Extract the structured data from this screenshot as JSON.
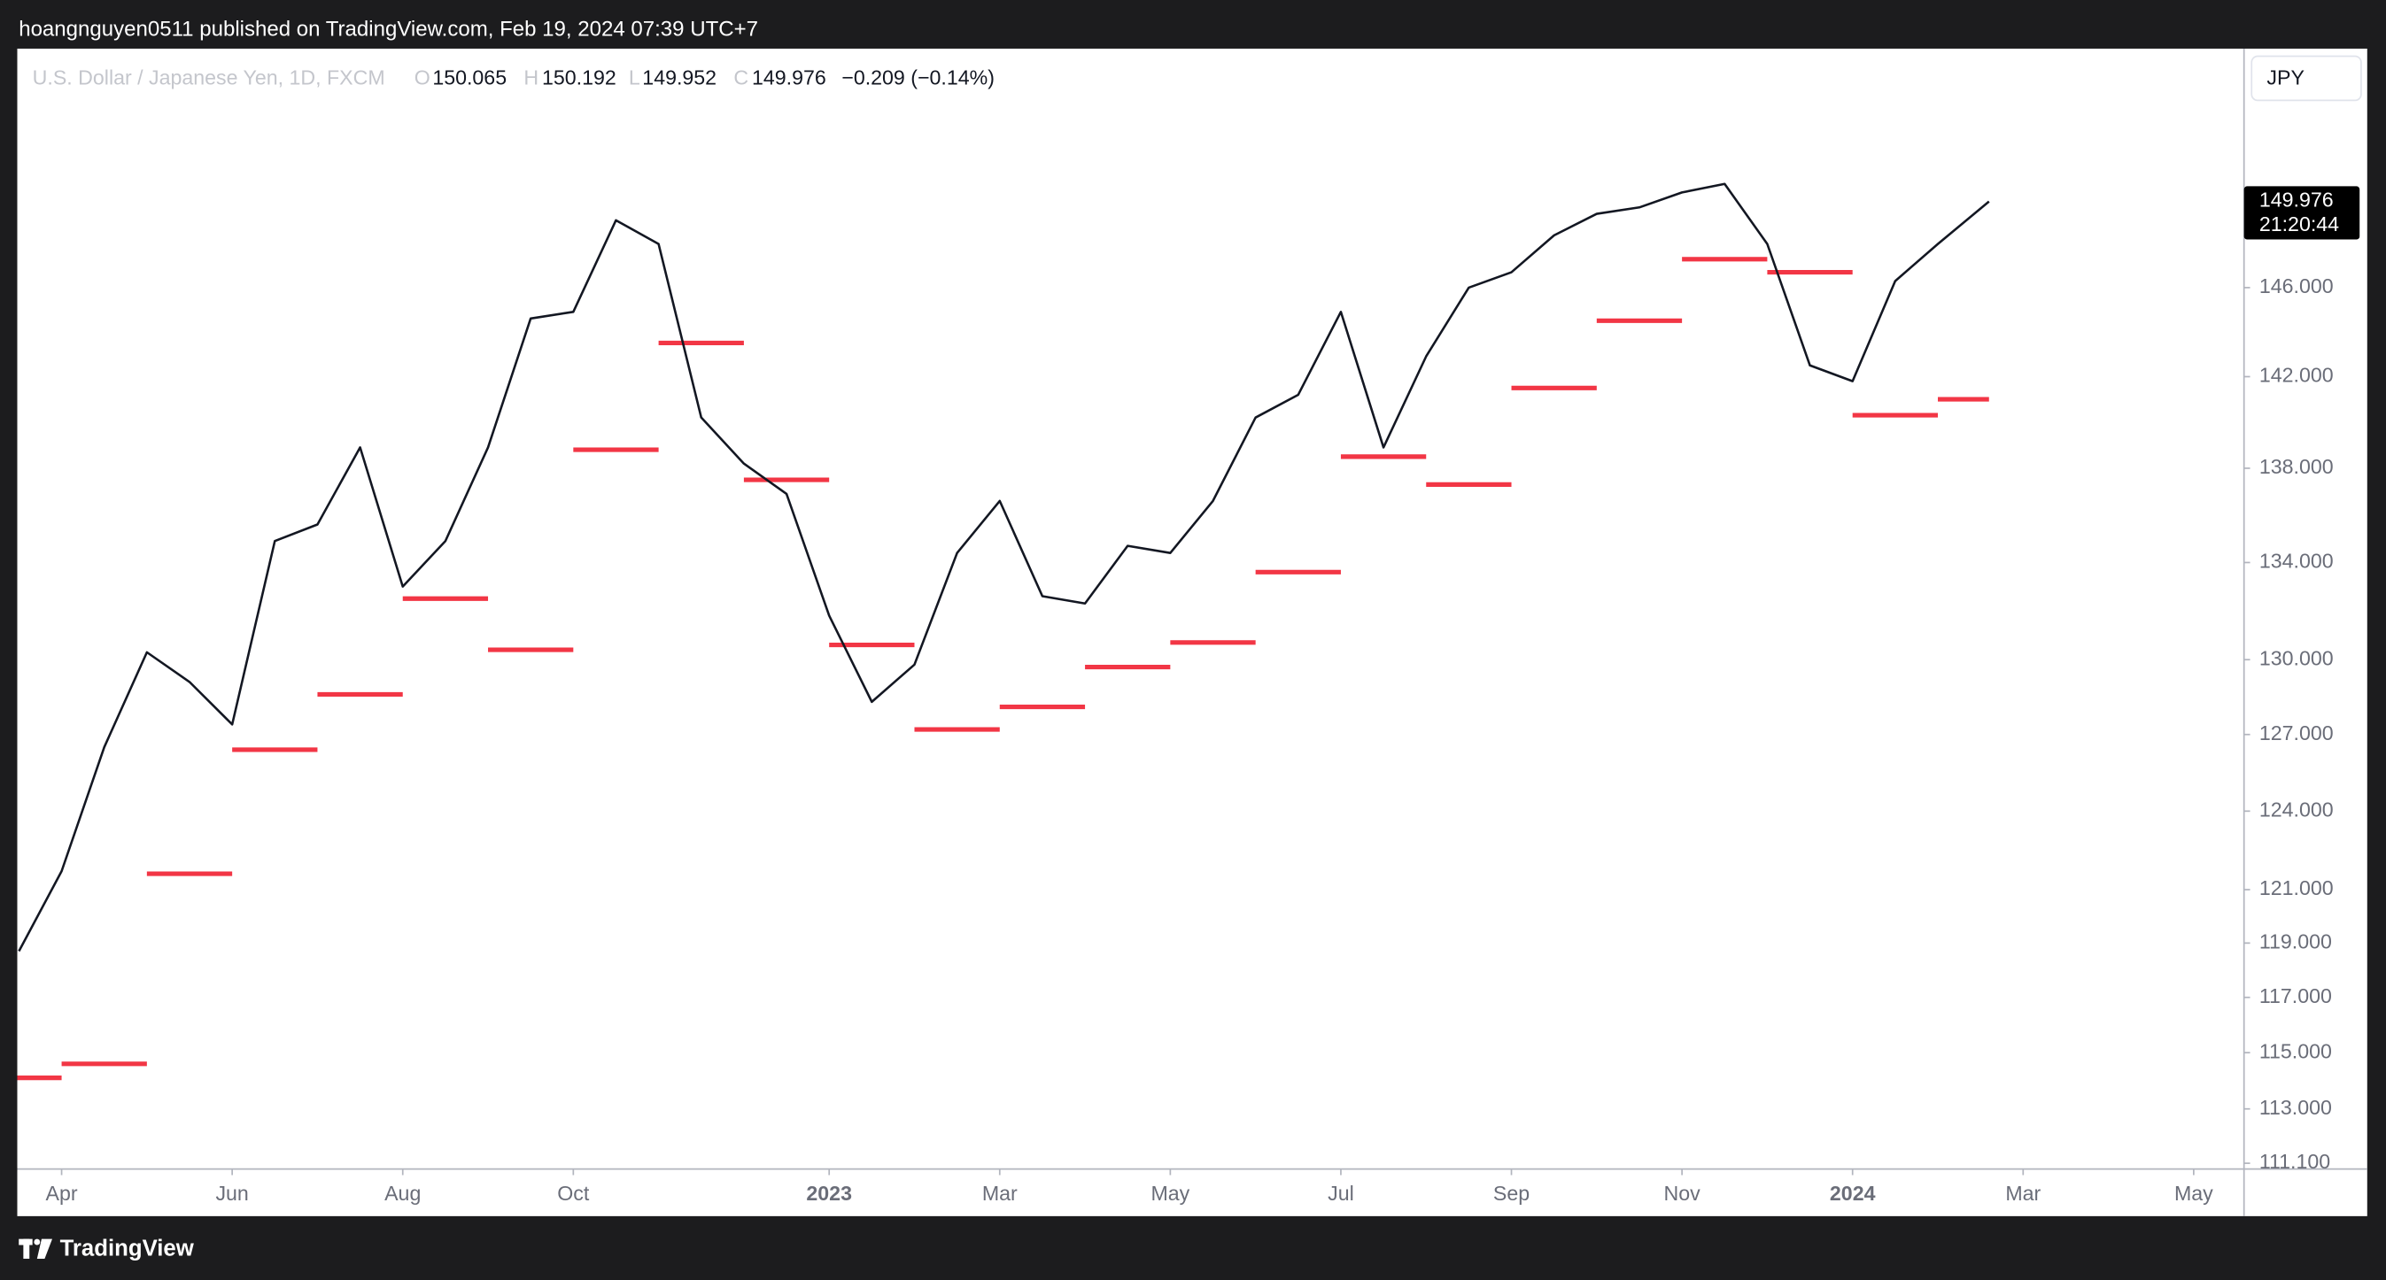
{
  "header": {
    "publisher": "hoangnguyen0511 published on TradingView.com, Feb 19, 2024 07:39 UTC+7"
  },
  "footer": {
    "brand": "TradingView"
  },
  "chart_data": {
    "type": "line",
    "title": "U.S. Dollar / Japanese Yen, 1D, FXCM",
    "ohlc": [
      {
        "label": "O",
        "value": 150.065
      },
      {
        "label": "H",
        "value": 150.192
      },
      {
        "label": "L",
        "value": 149.952
      },
      {
        "label": "C",
        "value": 149.976
      }
    ],
    "change": "−0.209 (−0.14%)",
    "currency": "JPY",
    "last_price": 149.976,
    "countdown": "21:20:44",
    "x": [
      2.5,
      3,
      3.5,
      4,
      4.5,
      5,
      5.5,
      6,
      6.5,
      7,
      7.5,
      8,
      8.5,
      9,
      9.5,
      10,
      10.5,
      11,
      11.5,
      12,
      12.5,
      13,
      13.5,
      14,
      14.5,
      15,
      15.5,
      16,
      16.5,
      17,
      17.5,
      18,
      18.5,
      19,
      19.5,
      20,
      20.5,
      21,
      21.5,
      22,
      22.5,
      23,
      23.5,
      24,
      24.5,
      25,
      25.6
    ],
    "series": [
      {
        "color": "#131722",
        "values": [
          118.7,
          121.7,
          126.5,
          130.3,
          129.1,
          127.4,
          134.9,
          135.6,
          138.9,
          133.0,
          134.9,
          138.9,
          144.6,
          144.9,
          149.1,
          148.0,
          140.2,
          138.2,
          136.9,
          131.8,
          128.3,
          129.8,
          134.4,
          136.6,
          132.6,
          132.3,
          134.7,
          134.4,
          136.6,
          140.2,
          141.2,
          144.9,
          138.9,
          142.9,
          146.0,
          146.7,
          148.4,
          149.4,
          149.7,
          150.4,
          150.8,
          148.0,
          142.5,
          141.8,
          146.3,
          148.0,
          149.976
        ]
      }
    ],
    "levels": {
      "color": "#f23645",
      "x_start": [
        2,
        3,
        4,
        5,
        6,
        7,
        8,
        9,
        10,
        11,
        12,
        13,
        14,
        15,
        16,
        17,
        18,
        19,
        20,
        21,
        22,
        23,
        24,
        25
      ],
      "x_end": [
        3,
        4,
        5,
        6,
        7,
        8,
        9,
        10,
        11,
        12,
        13,
        14,
        15,
        16,
        17,
        18,
        19,
        20,
        21,
        22,
        23,
        24,
        25,
        25.6
      ],
      "values": [
        114.1,
        114.6,
        121.6,
        126.4,
        128.6,
        132.5,
        130.4,
        138.8,
        143.5,
        137.5,
        130.6,
        127.2,
        128.1,
        129.7,
        130.7,
        133.6,
        138.5,
        137.3,
        141.5,
        144.5,
        147.3,
        146.7,
        140.3,
        141.0
      ]
    },
    "xlim": [
      2.48,
      28.59
    ],
    "xticks": [
      {
        "value": 3,
        "label": "Apr"
      },
      {
        "value": 5,
        "label": "Jun"
      },
      {
        "value": 7,
        "label": "Aug"
      },
      {
        "value": 9,
        "label": "Oct"
      },
      {
        "value": 12,
        "label": "2023"
      },
      {
        "value": 14,
        "label": "Mar"
      },
      {
        "value": 16,
        "label": "May"
      },
      {
        "value": 18,
        "label": "Jul"
      },
      {
        "value": 20,
        "label": "Sep"
      },
      {
        "value": 22,
        "label": "Nov"
      },
      {
        "value": 24,
        "label": "2024"
      },
      {
        "value": 26,
        "label": "Mar"
      },
      {
        "value": 28,
        "label": "May"
      }
    ],
    "ylim": [
      110.9,
      157.3
    ],
    "log_y": true,
    "yticks": [
      {
        "value": 111.1,
        "label": "111.100"
      },
      {
        "value": 113,
        "label": "113.000"
      },
      {
        "value": 115,
        "label": "115.000"
      },
      {
        "value": 117,
        "label": "117.000"
      },
      {
        "value": 119,
        "label": "119.000"
      },
      {
        "value": 121,
        "label": "121.000"
      },
      {
        "value": 124,
        "label": "124.000"
      },
      {
        "value": 127,
        "label": "127.000"
      },
      {
        "value": 130,
        "label": "130.000"
      },
      {
        "value": 134,
        "label": "134.000"
      },
      {
        "value": 138,
        "label": "138.000"
      },
      {
        "value": 142,
        "label": "142.000"
      },
      {
        "value": 146,
        "label": "146.000"
      }
    ]
  }
}
